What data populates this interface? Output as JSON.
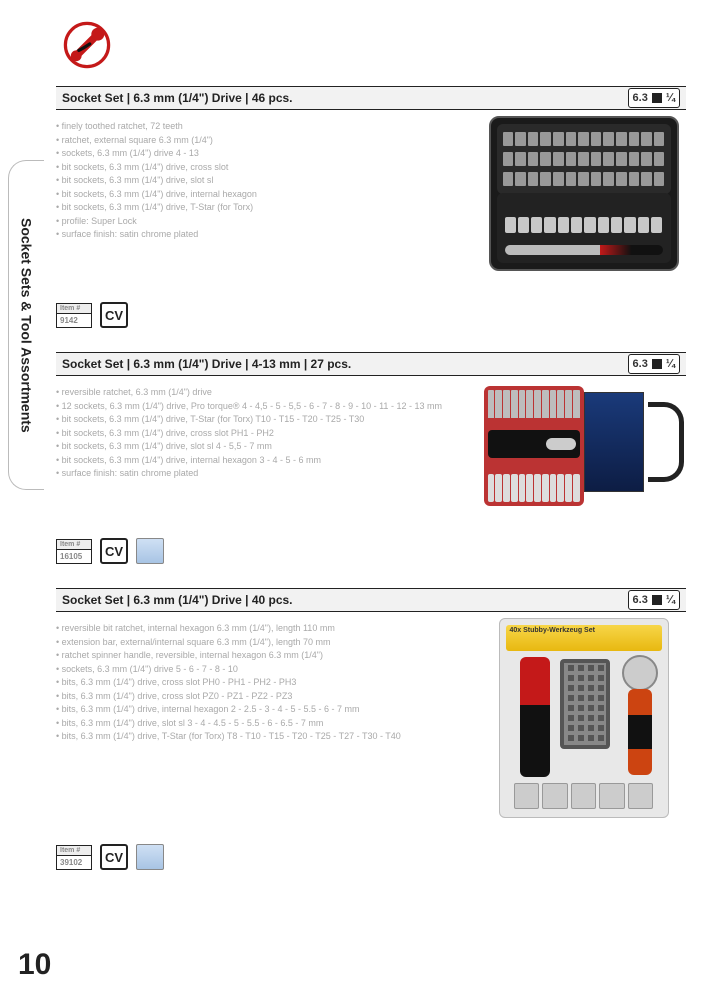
{
  "page_number": "10",
  "side_tab": "Socket Sets & Tool Assortments",
  "drive_badge": {
    "size": "6.3",
    "fraction": "¼"
  },
  "item_header": "Item #",
  "cv_label": "CV",
  "products": [
    {
      "title": "Socket Set | 6.3 mm (1/4\") Drive | 46 pcs.",
      "item_no": "9142",
      "show_blue_badge": false,
      "image_kind": "case",
      "bullets": [
        "finely toothed ratchet, 72 teeth",
        "ratchet, external square 6.3 mm (1/4\")",
        "sockets, 6.3 mm (1/4\") drive 4 - 13",
        "bit sockets, 6.3 mm (1/4\") drive, cross slot",
        "bit sockets, 6.3 mm (1/4\") drive, slot sl",
        "bit sockets, 6.3 mm (1/4\") drive, internal hexagon",
        "bit sockets, 6.3 mm (1/4\") drive, T-Star (for Torx)",
        "profile: Super Lock",
        "surface finish: satin chrome plated"
      ]
    },
    {
      "title": "Socket Set | 6.3 mm (1/4\") Drive | 4-13 mm | 27 pcs.",
      "item_no": "16105",
      "show_blue_badge": true,
      "image_kind": "rack",
      "bullets": [
        "reversible ratchet, 6.3 mm (1/4\") drive",
        "12 sockets, 6.3 mm (1/4\") drive, Pro torque® 4 - 4,5 - 5 - 5,5 - 6 - 7 - 8 - 9 - 10 - 11 - 12 - 13 mm",
        "bit sockets, 6.3 mm (1/4\") drive, T-Star (for Torx) T10 - T15 - T20 - T25 - T30",
        "bit sockets, 6.3 mm (1/4\") drive, cross slot PH1 - PH2",
        "bit sockets, 6.3 mm (1/4\") drive, slot sl 4 - 5,5 - 7 mm",
        "bit sockets, 6.3 mm (1/4\") drive, internal hexagon 3 - 4 - 5 - 6 mm",
        "surface finish: satin chrome plated"
      ]
    },
    {
      "title": "Socket Set | 6.3 mm (1/4\") Drive | 40 pcs.",
      "item_no": "39102",
      "show_blue_badge": true,
      "image_kind": "blister",
      "blister_label": "40x Stubby-Werkzeug Set",
      "bullets": [
        "reversible bit ratchet, internal hexagon 6.3 mm (1/4\"), length 110 mm",
        "extension bar, external/internal square 6.3 mm (1/4\"), length 70 mm",
        "ratchet spinner handle, reversible, internal hexagon 6.3 mm (1/4\")",
        "sockets, 6.3 mm (1/4\") drive 5 - 6 - 7 - 8 - 10",
        "bits, 6.3 mm (1/4\") drive, cross slot PH0 - PH1 - PH2 - PH3",
        "bits, 6.3 mm (1/4\") drive, cross slot PZ0 - PZ1 - PZ2 - PZ3",
        "bits, 6.3 mm (1/4\") drive, internal hexagon 2 - 2.5 - 3 - 4 - 5 - 5.5 - 6 - 7 mm",
        "bits, 6.3 mm (1/4\") drive, slot sl 3 - 4 - 4.5 - 5 - 5.5 - 6 - 6.5 - 7 mm",
        "bits, 6.3 mm (1/4\") drive, T-Star (for Torx) T8 - T10 - T15 - T20 - T25 - T27 - T30 - T40"
      ]
    }
  ]
}
